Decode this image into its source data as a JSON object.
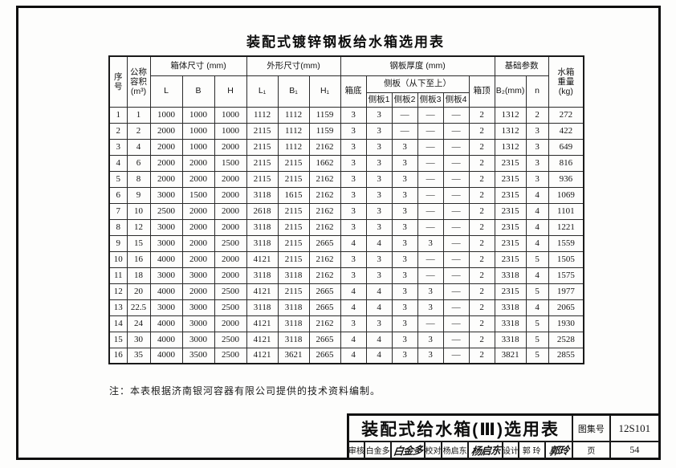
{
  "page": {
    "doc_title": "装配式镀锌钢板给水箱选用表",
    "note": "注：本表根据济南银河容器有限公司提供的技术资料编制。"
  },
  "table": {
    "header": {
      "seq": "序\n号",
      "capacity": "公称\n容积\n(m³)",
      "body_dims": "箱体尺寸 (mm)",
      "L": "L",
      "B": "B",
      "H": "H",
      "outer_dims": "外形尺寸(mm)",
      "L1": "L₁",
      "B1": "B₁",
      "H1": "H₁",
      "plate": "钢板厚度 (mm)",
      "box_bottom": "箱底",
      "side_group": "侧板（从下至上）",
      "side1": "侧板1",
      "side2": "侧板2",
      "side3": "侧板3",
      "side4": "侧板4",
      "box_top": "箱顶",
      "foundation": "基础参数",
      "b2": "B₂(mm)",
      "n": "n",
      "weight": "水箱\n重量\n(kg)"
    },
    "rows": [
      [
        "1",
        "1",
        "1000",
        "1000",
        "1000",
        "1112",
        "1112",
        "1159",
        "3",
        "3",
        "—",
        "—",
        "—",
        "2",
        "1312",
        "2",
        "272"
      ],
      [
        "2",
        "2",
        "2000",
        "1000",
        "1000",
        "2115",
        "1112",
        "1159",
        "3",
        "3",
        "—",
        "—",
        "—",
        "2",
        "1312",
        "3",
        "422"
      ],
      [
        "3",
        "4",
        "2000",
        "1000",
        "2000",
        "2115",
        "1112",
        "2162",
        "3",
        "3",
        "3",
        "—",
        "—",
        "2",
        "1312",
        "3",
        "649"
      ],
      [
        "4",
        "6",
        "2000",
        "2000",
        "1500",
        "2115",
        "2115",
        "1662",
        "3",
        "3",
        "3",
        "—",
        "—",
        "2",
        "2315",
        "3",
        "816"
      ],
      [
        "5",
        "8",
        "2000",
        "2000",
        "2000",
        "2115",
        "2115",
        "2162",
        "3",
        "3",
        "3",
        "—",
        "—",
        "2",
        "2315",
        "3",
        "936"
      ],
      [
        "6",
        "9",
        "3000",
        "1500",
        "2000",
        "3118",
        "1615",
        "2162",
        "3",
        "3",
        "3",
        "—",
        "—",
        "2",
        "2315",
        "4",
        "1069"
      ],
      [
        "7",
        "10",
        "2500",
        "2000",
        "2000",
        "2618",
        "2115",
        "2162",
        "3",
        "3",
        "3",
        "—",
        "—",
        "2",
        "2315",
        "4",
        "1101"
      ],
      [
        "8",
        "12",
        "3000",
        "2000",
        "2000",
        "3118",
        "2115",
        "2162",
        "3",
        "3",
        "3",
        "—",
        "—",
        "2",
        "2315",
        "4",
        "1221"
      ],
      [
        "9",
        "15",
        "3000",
        "2000",
        "2500",
        "3118",
        "2115",
        "2665",
        "4",
        "4",
        "3",
        "3",
        "—",
        "2",
        "2315",
        "4",
        "1559"
      ],
      [
        "10",
        "16",
        "4000",
        "2000",
        "2000",
        "4121",
        "2115",
        "2162",
        "3",
        "3",
        "3",
        "—",
        "—",
        "2",
        "2315",
        "5",
        "1505"
      ],
      [
        "11",
        "18",
        "3000",
        "3000",
        "2000",
        "3118",
        "3118",
        "2162",
        "3",
        "3",
        "3",
        "—",
        "—",
        "2",
        "3318",
        "4",
        "1575"
      ],
      [
        "12",
        "20",
        "4000",
        "2000",
        "2500",
        "4121",
        "2115",
        "2665",
        "4",
        "4",
        "3",
        "3",
        "—",
        "2",
        "2315",
        "5",
        "1977"
      ],
      [
        "13",
        "22.5",
        "3000",
        "3000",
        "2500",
        "3118",
        "3118",
        "2665",
        "4",
        "4",
        "3",
        "3",
        "—",
        "2",
        "3318",
        "4",
        "2065"
      ],
      [
        "14",
        "24",
        "4000",
        "3000",
        "2000",
        "4121",
        "3118",
        "2162",
        "3",
        "3",
        "3",
        "—",
        "—",
        "2",
        "3318",
        "5",
        "1930"
      ],
      [
        "15",
        "30",
        "4000",
        "3000",
        "2500",
        "4121",
        "3118",
        "2665",
        "4",
        "4",
        "3",
        "3",
        "—",
        "2",
        "3318",
        "5",
        "2528"
      ],
      [
        "16",
        "35",
        "4000",
        "3500",
        "2500",
        "4121",
        "3621",
        "2665",
        "4",
        "4",
        "3",
        "3",
        "—",
        "2",
        "3821",
        "5",
        "2855"
      ]
    ]
  },
  "title_block": {
    "title": "装配式给水箱(Ⅲ)选用表",
    "atlas_label": "图集号",
    "atlas_no": "12S101",
    "page_label": "页",
    "page_no": "54",
    "review_label": "审核",
    "review_name": "白金多",
    "review_sig": "白金多",
    "proof_label": "校对",
    "proof_name": "杨启东",
    "proof_sig": "杨启东",
    "design_label": "设计",
    "design_name": "郭 玲",
    "design_sig": "郭玲"
  }
}
